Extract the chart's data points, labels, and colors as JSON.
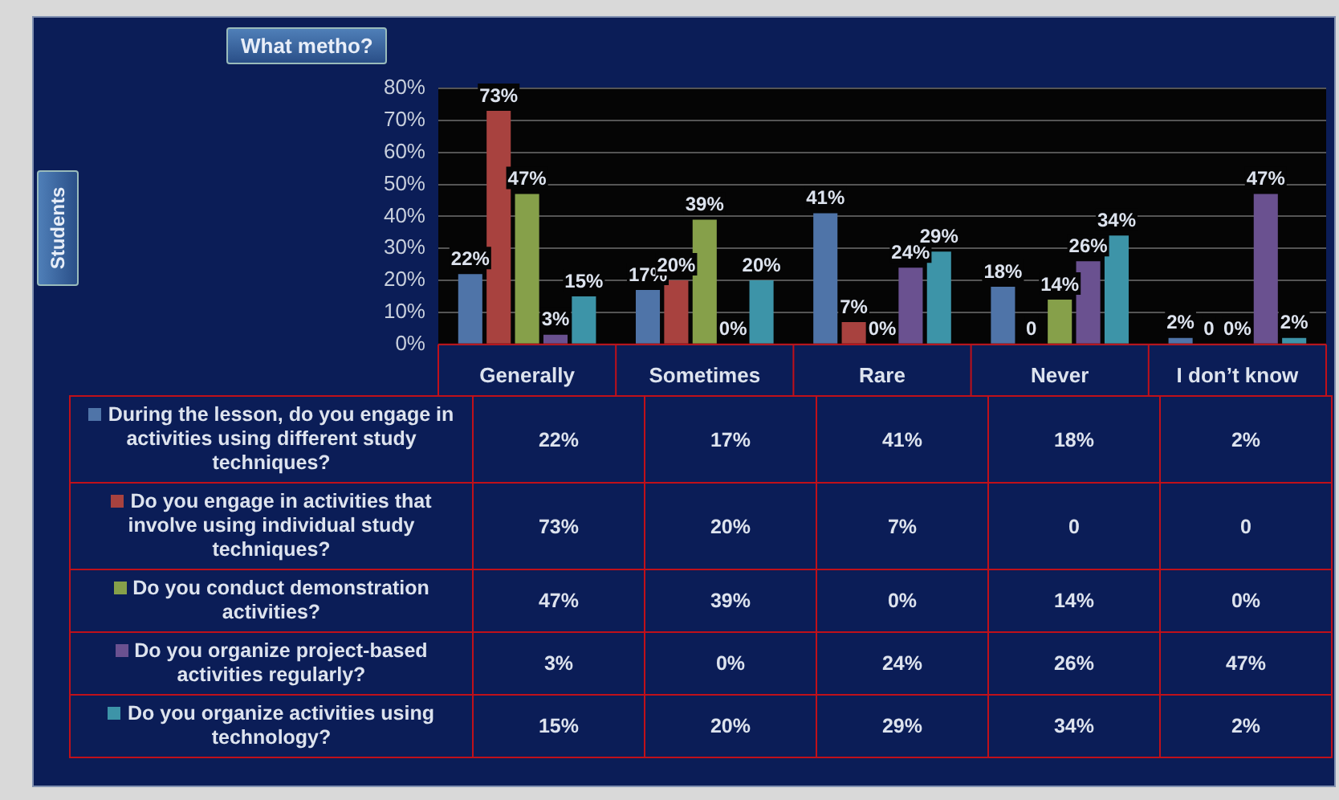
{
  "chart_data": {
    "type": "bar",
    "title": "What metho?",
    "annotations": [
      "Students"
    ],
    "categories": [
      "Generally",
      "Sometimes",
      "Rare",
      "Never",
      "I don’t know"
    ],
    "series": [
      {
        "name": "During the lesson, do you engage in activities using different study techniques?",
        "color": "#4f74a8",
        "values": [
          22,
          17,
          41,
          18,
          2
        ],
        "value_labels": [
          "22%",
          "17%",
          "41%",
          "18%",
          "2%"
        ]
      },
      {
        "name": "Do you engage in activities that involve using individual study techniques?",
        "color": "#a8423f",
        "values": [
          73,
          20,
          7,
          0,
          0
        ],
        "value_labels": [
          "73%",
          "20%",
          "7%",
          "0",
          "0"
        ]
      },
      {
        "name": "Do you conduct demonstration activities?",
        "color": "#86a04a",
        "values": [
          47,
          39,
          0,
          14,
          0
        ],
        "value_labels": [
          "47%",
          "39%",
          "0%",
          "14%",
          "0%"
        ]
      },
      {
        "name": "Do you organize project-based activities regularly?",
        "color": "#6a5190",
        "values": [
          3,
          0,
          24,
          26,
          47
        ],
        "value_labels": [
          "3%",
          "0%",
          "24%",
          "26%",
          "47%"
        ]
      },
      {
        "name": "Do you organize activities using technology?",
        "color": "#3d94a8",
        "values": [
          15,
          20,
          29,
          34,
          2
        ],
        "value_labels": [
          "15%",
          "20%",
          "29%",
          "34%",
          "2%"
        ]
      }
    ],
    "ylim": [
      0,
      80
    ],
    "yticks": [
      {
        "value": 0,
        "label": "0%"
      },
      {
        "value": 10,
        "label": "10%"
      },
      {
        "value": 20,
        "label": "20%"
      },
      {
        "value": 30,
        "label": "30%"
      },
      {
        "value": 40,
        "label": "40%"
      },
      {
        "value": 50,
        "label": "50%"
      },
      {
        "value": 60,
        "label": "60%"
      },
      {
        "value": 70,
        "label": "70%"
      },
      {
        "value": 80,
        "label": "80%"
      }
    ],
    "grid": "y",
    "legend": "bottom"
  }
}
